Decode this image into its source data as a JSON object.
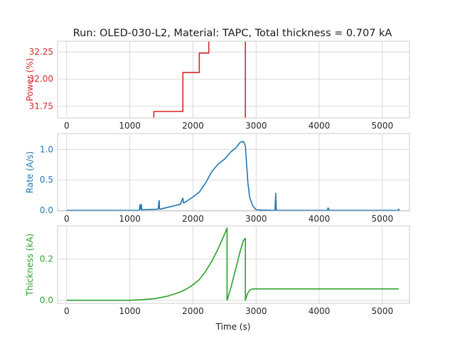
{
  "title": "Run: OLED-030-L2, Material: TAPC, Total thickness = 0.707 kA",
  "xlabel": "Time (s)",
  "chart_data": [
    {
      "type": "line",
      "ylabel": "Power (%)",
      "color": "#d62728",
      "xlim": [
        -145,
        5430
      ],
      "ylim": [
        31.64,
        32.35
      ],
      "xticks": [
        0,
        1000,
        2000,
        3000,
        4000,
        5000
      ],
      "yticks": [
        31.75,
        32.0,
        32.25
      ],
      "ytick_labels": [
        "31.75",
        "32.00",
        "32.25"
      ],
      "grid": true,
      "series": [
        {
          "x": [
            1380,
            1380,
            1840,
            1840,
            2100,
            2100,
            2250,
            2250,
            2830,
            2830
          ],
          "y": [
            31.64,
            31.7,
            31.7,
            32.06,
            32.06,
            32.24,
            32.24,
            32.42,
            32.42,
            31.64
          ]
        }
      ]
    },
    {
      "type": "line",
      "ylabel": "Rate (A/s)",
      "color": "#1f77b4",
      "xlim": [
        -145,
        5430
      ],
      "ylim": [
        -0.01,
        1.26
      ],
      "xticks": [
        0,
        1000,
        2000,
        3000,
        4000,
        5000
      ],
      "yticks": [
        0.0,
        0.5,
        1.0
      ],
      "ytick_labels": [
        "0.0",
        "0.5",
        "1.0"
      ],
      "grid": true,
      "series": [
        {
          "x": [
            0,
            1150,
            1160,
            1170,
            1180,
            1190,
            1200,
            1450,
            1460,
            1465,
            1470,
            1480,
            1800,
            1830,
            1840,
            1850,
            1900,
            2000,
            2100,
            2200,
            2300,
            2400,
            2500,
            2550,
            2600,
            2650,
            2700,
            2750,
            2800,
            2830,
            2850,
            2870,
            2900,
            2950,
            3000,
            3100,
            3300,
            3310,
            3315,
            3320,
            3330,
            3500,
            4130,
            4140,
            4150,
            4160,
            5000,
            5250,
            5260,
            5270
          ],
          "y": [
            0.0,
            0.0,
            0.09,
            0.02,
            0.1,
            0.0,
            0.01,
            0.02,
            0.14,
            0.16,
            0.03,
            0.02,
            0.1,
            0.18,
            0.2,
            0.12,
            0.15,
            0.22,
            0.3,
            0.45,
            0.64,
            0.76,
            0.84,
            0.9,
            0.96,
            1.0,
            1.05,
            1.12,
            1.13,
            1.06,
            0.75,
            0.45,
            0.2,
            0.07,
            0.01,
            0.005,
            0.0,
            0.28,
            0.15,
            0.0,
            0.0,
            0.0,
            0.0,
            0.04,
            0.02,
            0.0,
            0.0,
            0.0,
            0.02,
            0.0
          ]
        }
      ]
    },
    {
      "type": "line",
      "ylabel": "Thickness (kA)",
      "color": "#2ca02c",
      "xlim": [
        -145,
        5430
      ],
      "ylim": [
        -0.015,
        0.36
      ],
      "xticks": [
        0,
        1000,
        2000,
        3000,
        4000,
        5000
      ],
      "yticks": [
        0.0,
        0.2
      ],
      "ytick_labels": [
        "0.0",
        "0.2"
      ],
      "grid": true,
      "series": [
        {
          "x": [
            0,
            1000,
            1200,
            1400,
            1600,
            1800,
            1900,
            2000,
            2100,
            2200,
            2300,
            2400,
            2500,
            2540,
            2540,
            2600,
            2650,
            2700,
            2750,
            2800,
            2830,
            2830,
            2860,
            2900,
            2950,
            3000,
            3100,
            4000,
            5000,
            5260
          ],
          "y": [
            0.0,
            0.0,
            0.003,
            0.008,
            0.02,
            0.04,
            0.055,
            0.075,
            0.1,
            0.14,
            0.19,
            0.25,
            0.32,
            0.35,
            0.0,
            0.06,
            0.12,
            0.18,
            0.24,
            0.29,
            0.3,
            0.0,
            0.03,
            0.05,
            0.055,
            0.055,
            0.055,
            0.055,
            0.055,
            0.055
          ]
        }
      ]
    }
  ]
}
